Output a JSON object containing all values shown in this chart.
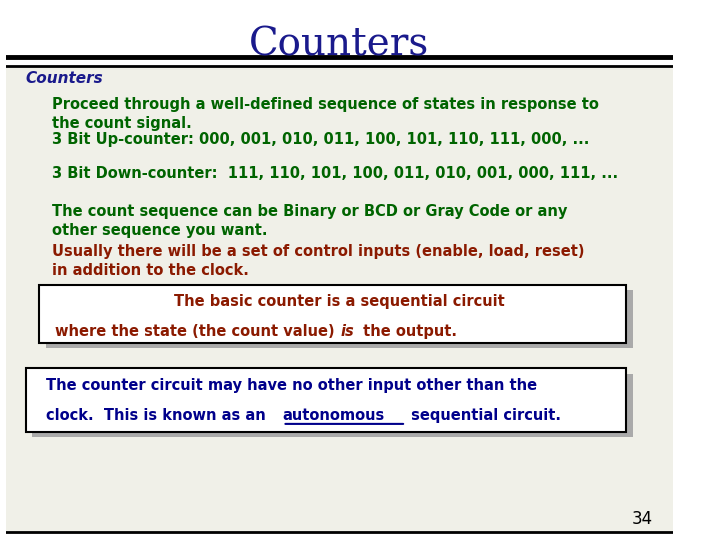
{
  "title": "Counters",
  "title_color": "#1a1a8c",
  "title_fontsize": 28,
  "bg_color": "#ffffff",
  "subtitle": "Counters",
  "subtitle_color": "#1a1a8c",
  "body_lines": [
    {
      "text": "Proceed through a well-defined sequence of states in response to\nthe count signal.",
      "color": "#006400",
      "bold": true,
      "indent": 0.07
    },
    {
      "text": "3 Bit Up-counter: 000, 001, 010, 011, 100, 101, 110, 111, 000, ...",
      "color": "#006400",
      "bold": true,
      "indent": 0.07
    },
    {
      "text": "3 Bit Down-counter:  111, 110, 101, 100, 011, 010, 001, 000, 111, ...",
      "color": "#006400",
      "bold": true,
      "indent": 0.07
    },
    {
      "text": "The count sequence can be Binary or BCD or Gray Code or any\nother sequence you want.",
      "color": "#006400",
      "bold": true,
      "indent": 0.07
    },
    {
      "text": "Usually there will be a set of control inputs (enable, load, reset)\nin addition to the clock.",
      "color": "#8b1a00",
      "bold": true,
      "indent": 0.07
    }
  ],
  "box1_line1": "The basic counter is a sequential circuit",
  "box1_line2_pre": "where the state (the count value) ",
  "box1_line2_italic": "is",
  "box1_line2_post": " the output.",
  "box1_color": "#8b1a00",
  "box1_bg": "#ffffff",
  "box2_line1": "The counter circuit may have no other input other than the",
  "box2_line2_pre": "clock.  This is known as an ",
  "box2_line2_underline": "autonomous",
  "box2_line2_post": " sequential circuit.",
  "box2_color": "#00008b",
  "box2_bg": "#ffffff",
  "shadow_color": "#aaaaaa",
  "page_num": "34",
  "content_area_bg": "#f0f0e8"
}
